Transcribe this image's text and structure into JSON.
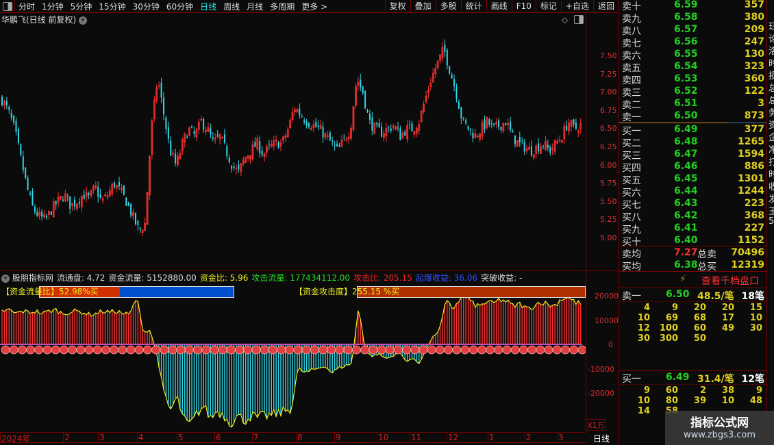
{
  "toolbar": {
    "periods": [
      "分时",
      "1分钟",
      "5分钟",
      "15分钟",
      "30分钟",
      "60分钟",
      "日线",
      "周线",
      "月线",
      "多周期",
      "更多 >"
    ],
    "active": "日线",
    "right": [
      "复权",
      "叠加",
      "多股",
      "统计",
      "画线",
      "F10",
      "标记",
      "+自选",
      "返回"
    ]
  },
  "title": "华鹏飞(日线 前复权)",
  "price_axis": [
    "7.50",
    "7.25",
    "7.00",
    "6.75",
    "6.50",
    "6.25",
    "6.00",
    "5.75",
    "5.50",
    "5.25",
    "5.00"
  ],
  "price_closes": [
    6.9,
    6.75,
    6.5,
    6.1,
    5.7,
    5.4,
    5.3,
    5.25,
    5.4,
    5.5,
    5.6,
    5.45,
    5.5,
    5.6,
    5.55,
    5.7,
    5.5,
    5.6,
    5.75,
    5.65,
    5.5,
    5.3,
    5.1,
    5.2,
    6.5,
    7.2,
    6.7,
    6.2,
    6.0,
    6.3,
    6.5,
    6.4,
    6.6,
    6.5,
    6.3,
    6.4,
    6.2,
    6.0,
    5.9,
    6.1,
    6.2,
    6.3,
    6.15,
    6.25,
    6.3,
    6.3,
    6.5,
    6.8,
    6.7,
    6.6,
    6.55,
    6.5,
    6.4,
    6.3,
    6.2,
    6.35,
    6.5,
    7.2,
    7.0,
    6.6,
    6.5,
    6.45,
    6.5,
    6.55,
    6.4,
    6.5,
    6.5,
    6.6,
    6.9,
    7.2,
    7.4,
    7.6,
    7.3,
    7.0,
    6.6,
    6.5,
    6.4,
    6.5,
    6.6,
    6.5,
    6.55,
    6.6,
    6.4,
    6.3,
    6.25,
    6.2,
    6.25,
    6.3,
    6.2,
    6.3,
    6.4,
    6.6,
    6.5,
    6.55
  ],
  "indicator": {
    "name": "股朋指标网",
    "items": [
      {
        "label": "流通盘: 4.72",
        "color": "#dddddd"
      },
      {
        "label": "资金流量: 5152880.00",
        "color": "#dddddd"
      },
      {
        "label": "资金比: 5.96",
        "color": "#f0f020"
      },
      {
        "label": "攻击流量: 177434112.00",
        "color": "#20e020"
      },
      {
        "label": "攻击比: 205.15",
        "color": "#ff2020"
      },
      {
        "label": "起爆收益: 36.06",
        "color": "#3050ff"
      },
      {
        "label": "突破收益: -",
        "color": "#dddddd"
      }
    ],
    "bar1_label": "【资金流量比】52.98%买",
    "bar1_fraction": 0.5298,
    "bar2_label": "【资金攻击度】255.15 %买",
    "axis": [
      "20000",
      "10000",
      "0",
      "-10000",
      "-20000"
    ],
    "unit": "X1万",
    "flow": [
      14000,
      14500,
      13000,
      14000,
      13500,
      14000,
      13000,
      14000,
      14500,
      13000,
      13500,
      14000,
      13500,
      12500,
      13000,
      14000,
      13500,
      14000,
      13000,
      12500,
      20000,
      5000,
      6000,
      -4000,
      -20000,
      -28000,
      -22000,
      -32000,
      -34000,
      -29000,
      -26000,
      -31000,
      -28000,
      -30000,
      -33000,
      -30000,
      -32000,
      -30000,
      -31000,
      -30000,
      -30000,
      -29000,
      -28000,
      -27000,
      -10000,
      -12000,
      -11000,
      -10000,
      -9000,
      -12000,
      -10000,
      -9000,
      -8000,
      16000,
      -3000,
      -5000,
      -4000,
      -6000,
      -5000,
      -3000,
      -7000,
      -6000,
      -8000,
      -2000,
      3000,
      6000,
      18000,
      15000,
      19000,
      20000,
      17000,
      16000,
      18000,
      17000,
      19000,
      18000,
      16000,
      17000,
      15000,
      16000,
      18000,
      17000,
      16000,
      19000,
      20000,
      18000,
      17000
    ]
  },
  "time_axis": [
    "2024年",
    "2",
    "3",
    "4",
    "5",
    "6",
    "7",
    "8",
    "9",
    "10",
    "11",
    "12",
    "1",
    "2",
    "3"
  ],
  "time_period": "日线",
  "book": {
    "asks": [
      [
        "卖十",
        "6.59",
        "357"
      ],
      [
        "卖九",
        "6.58",
        "380"
      ],
      [
        "卖八",
        "6.57",
        "209"
      ],
      [
        "卖七",
        "6.56",
        "247"
      ],
      [
        "卖六",
        "6.55",
        "130"
      ],
      [
        "卖五",
        "6.54",
        "323"
      ],
      [
        "卖四",
        "6.53",
        "360"
      ],
      [
        "卖三",
        "6.52",
        "122"
      ],
      [
        "卖二",
        "6.51",
        "3"
      ],
      [
        "卖一",
        "6.50",
        "873"
      ]
    ],
    "bids": [
      [
        "买一",
        "6.49",
        "377"
      ],
      [
        "买二",
        "6.48",
        "1265"
      ],
      [
        "买三",
        "6.47",
        "1594"
      ],
      [
        "买四",
        "6.46",
        "886"
      ],
      [
        "买五",
        "6.45",
        "1301"
      ],
      [
        "买六",
        "6.44",
        "1244"
      ],
      [
        "买七",
        "6.43",
        "223"
      ],
      [
        "买八",
        "6.42",
        "368"
      ],
      [
        "买九",
        "6.41",
        "227"
      ],
      [
        "买十",
        "6.40",
        "1152"
      ]
    ],
    "avg_sell_label": "卖均",
    "avg_sell": "7.27",
    "total_sell_label": "总卖",
    "total_sell": "70496",
    "avg_buy_label": "买均",
    "avg_buy": "6.38",
    "total_buy_label": "总买",
    "total_buy": "12319",
    "depth_link": "查看千档盘口",
    "ask1": {
      "label": "卖一",
      "price": "6.50",
      "avg": "48.5/笔",
      "count": "18笔",
      "orders": [
        "4",
        "9",
        "20",
        "20",
        "15",
        "10",
        "69",
        "68",
        "17",
        "10",
        "12",
        "100",
        "60",
        "49",
        "30",
        "30",
        "300",
        "50"
      ]
    },
    "bid1": {
      "label": "买一",
      "price": "6.49",
      "avg": "31.4/笔",
      "count": "12笔",
      "orders": [
        "9",
        "60",
        "2",
        "38",
        "9",
        "10",
        "80",
        "39",
        "10",
        "48",
        "14",
        "58"
      ]
    }
  },
  "strip": [
    "珏",
    "论",
    "洛",
    "时",
    "损",
    "总",
    "总",
    "务",
    "资",
    "企",
    "净",
    "打",
    "时",
    "收",
    "发",
    "王",
    "5"
  ],
  "watermark": {
    "title": "指标公式网",
    "url": "www.zbgs3.com"
  },
  "colors": {
    "up": "#ff3030",
    "down": "#30d8e8",
    "line": "#f0f020",
    "frame": "#7a0000"
  }
}
